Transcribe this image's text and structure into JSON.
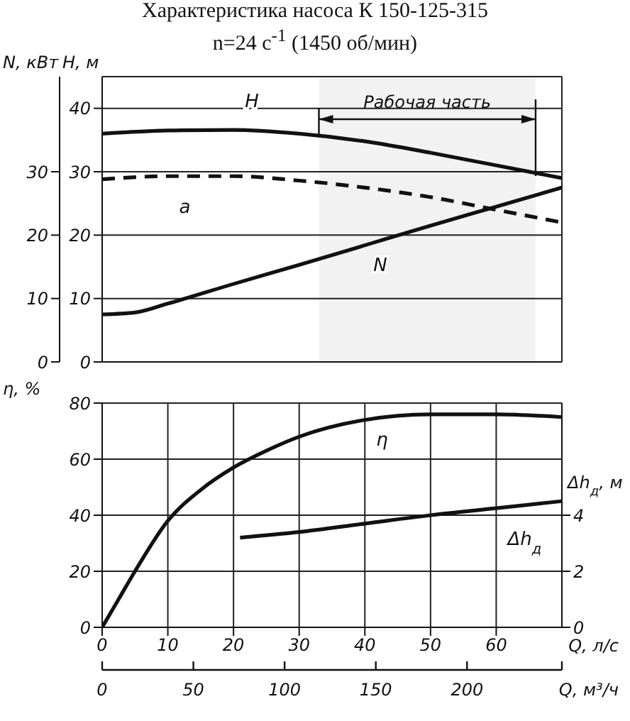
{
  "chart_data": [
    {
      "type": "line",
      "title": "Характеристика насоса К 150-125-315",
      "subtitle": "n=24 с$^{-1}$ (1450 об/мин)",
      "ylabel": "H, м",
      "y2label": "N, кВт",
      "xlim": [
        0,
        70
      ],
      "xticks": [
        0,
        10,
        20,
        30,
        40,
        50,
        60,
        70
      ],
      "ylim": [
        0,
        45
      ],
      "yticks": [
        0,
        10,
        20,
        30,
        40
      ],
      "y2lim": [
        0,
        45
      ],
      "y2ticks": [
        0,
        10,
        20,
        30
      ],
      "series": [
        {
          "name": "H",
          "color": "#111111",
          "x": [
            0,
            10,
            20,
            30,
            40,
            50,
            60,
            70
          ],
          "values": [
            36,
            36.5,
            36.6,
            36,
            34.8,
            33,
            31,
            29
          ]
        },
        {
          "name": "a",
          "color": "#111111",
          "line_style": "dashed",
          "x": [
            0,
            10,
            20,
            30,
            40,
            50,
            60,
            70
          ],
          "values": [
            28.8,
            29.3,
            29.3,
            28.6,
            27.5,
            26,
            24,
            22
          ]
        },
        {
          "name": "N",
          "color": "#111111",
          "axis": "y2",
          "x": [
            0,
            5,
            10,
            20,
            30,
            40,
            50,
            60,
            70
          ],
          "values": [
            7.5,
            7.8,
            9.2,
            12.3,
            15.3,
            18.4,
            21.5,
            24.5,
            27.5
          ]
        }
      ],
      "bands": [
        {
          "axis": "x",
          "from": 33,
          "to": 66,
          "label": "Рабочая часть"
        }
      ],
      "grid": true,
      "tick_labels": "y"
    },
    {
      "type": "line",
      "xlabel": "Q, л/с",
      "ylabel": "η, %",
      "y2label": "Δh$_{д}$, м",
      "x2label": "Q, м³/ч",
      "xlim": [
        0,
        70
      ],
      "xticks": [
        0,
        10,
        20,
        30,
        40,
        50,
        60
      ],
      "x2lim": [
        0,
        252
      ],
      "x2ticks": [
        0,
        50,
        100,
        150,
        200
      ],
      "ylim": [
        0,
        80
      ],
      "yticks": [
        0,
        20,
        40,
        60,
        80
      ],
      "y2lim": [
        0,
        8
      ],
      "y2ticks": [
        0,
        2,
        4
      ],
      "series": [
        {
          "name": "η",
          "color": "#111111",
          "x": [
            0,
            2.5,
            5,
            10,
            15,
            20,
            25,
            30,
            40,
            50,
            60,
            70
          ],
          "values": [
            0,
            10,
            20,
            38,
            49,
            57,
            63,
            68,
            74,
            76,
            76,
            75
          ]
        },
        {
          "name": "Δh$_{д}$",
          "color": "#111111",
          "axis": "y2",
          "x": [
            21,
            30,
            40,
            50,
            60,
            70
          ],
          "values": [
            3.2,
            3.4,
            3.7,
            4.0,
            4.25,
            4.5
          ]
        }
      ],
      "grid": true
    }
  ]
}
